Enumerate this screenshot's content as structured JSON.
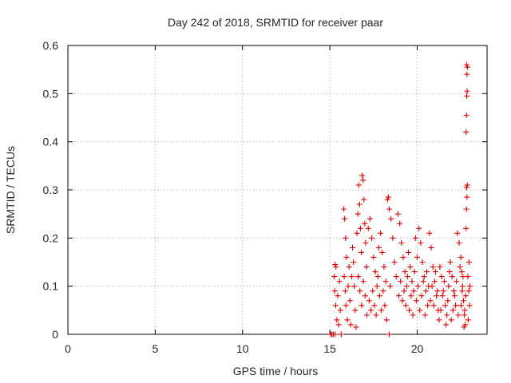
{
  "chart_data": {
    "type": "scatter",
    "title": "Day 242 of 2018, SRMTID for receiver paar",
    "xlabel": "GPS time / hours",
    "ylabel": "SRMTID / TECUs",
    "xlim": [
      0,
      24
    ],
    "ylim": [
      0,
      0.6
    ],
    "xticks": [
      "0",
      "5",
      "10",
      "15",
      "20"
    ],
    "yticks": [
      "0",
      "0.1",
      "0.2",
      "0.3",
      "0.4",
      "0.5",
      "0.6"
    ],
    "grid": true,
    "marker_color": "#e00000",
    "series": [
      {
        "name": "SRMTID",
        "marker": "+",
        "points": [
          [
            15.05,
            0.0
          ],
          [
            15.12,
            0.0
          ],
          [
            15.2,
            0.0
          ],
          [
            15.3,
            0.0
          ],
          [
            15.65,
            0.0
          ],
          [
            18.4,
            0.0
          ],
          [
            15.25,
            0.12
          ],
          [
            15.3,
            0.145
          ],
          [
            15.35,
            0.14
          ],
          [
            15.28,
            0.09
          ],
          [
            15.33,
            0.06
          ],
          [
            15.4,
            0.03
          ],
          [
            15.45,
            0.08
          ],
          [
            15.5,
            0.02
          ],
          [
            15.55,
            0.11
          ],
          [
            15.6,
            0.05
          ],
          [
            15.8,
            0.26
          ],
          [
            15.85,
            0.24
          ],
          [
            15.9,
            0.2
          ],
          [
            15.95,
            0.16
          ],
          [
            15.82,
            0.12
          ],
          [
            15.88,
            0.09
          ],
          [
            15.92,
            0.06
          ],
          [
            16.0,
            0.03
          ],
          [
            16.05,
            0.1
          ],
          [
            16.1,
            0.14
          ],
          [
            16.15,
            0.07
          ],
          [
            16.2,
            0.02
          ],
          [
            16.25,
            0.12
          ],
          [
            16.3,
            0.18
          ],
          [
            16.35,
            0.15
          ],
          [
            16.4,
            0.1
          ],
          [
            16.45,
            0.05
          ],
          [
            16.5,
            0.015
          ],
          [
            16.55,
            0.21
          ],
          [
            16.6,
            0.25
          ],
          [
            16.65,
            0.31
          ],
          [
            16.7,
            0.27
          ],
          [
            16.75,
            0.22
          ],
          [
            16.8,
            0.17
          ],
          [
            16.85,
            0.33
          ],
          [
            16.9,
            0.32
          ],
          [
            16.95,
            0.28
          ],
          [
            17.0,
            0.23
          ],
          [
            17.05,
            0.19
          ],
          [
            17.1,
            0.14
          ],
          [
            16.62,
            0.12
          ],
          [
            16.72,
            0.09
          ],
          [
            16.82,
            0.06
          ],
          [
            16.92,
            0.11
          ],
          [
            17.02,
            0.08
          ],
          [
            17.12,
            0.04
          ],
          [
            17.2,
            0.22
          ],
          [
            17.3,
            0.24
          ],
          [
            17.4,
            0.2
          ],
          [
            17.5,
            0.16
          ],
          [
            17.6,
            0.13
          ],
          [
            17.7,
            0.1
          ],
          [
            17.25,
            0.07
          ],
          [
            17.35,
            0.05
          ],
          [
            17.45,
            0.09
          ],
          [
            17.55,
            0.06
          ],
          [
            17.65,
            0.04
          ],
          [
            17.75,
            0.12
          ],
          [
            17.8,
            0.18
          ],
          [
            17.9,
            0.21
          ],
          [
            18.0,
            0.17
          ],
          [
            18.1,
            0.14
          ],
          [
            18.2,
            0.11
          ],
          [
            18.3,
            0.28
          ],
          [
            18.35,
            0.285
          ],
          [
            18.4,
            0.26
          ],
          [
            18.5,
            0.24
          ],
          [
            18.6,
            0.2
          ],
          [
            18.7,
            0.15
          ],
          [
            18.8,
            0.12
          ],
          [
            17.85,
            0.08
          ],
          [
            17.95,
            0.05
          ],
          [
            18.05,
            0.09
          ],
          [
            18.15,
            0.06
          ],
          [
            18.25,
            0.03
          ],
          [
            18.45,
            0.1
          ],
          [
            18.9,
            0.25
          ],
          [
            19.0,
            0.23
          ],
          [
            19.1,
            0.19
          ],
          [
            19.2,
            0.16
          ],
          [
            19.3,
            0.13
          ],
          [
            19.4,
            0.1
          ],
          [
            18.95,
            0.08
          ],
          [
            19.05,
            0.11
          ],
          [
            19.15,
            0.07
          ],
          [
            19.25,
            0.09
          ],
          [
            19.35,
            0.06
          ],
          [
            19.45,
            0.12
          ],
          [
            19.5,
            0.17
          ],
          [
            19.6,
            0.14
          ],
          [
            19.7,
            0.11
          ],
          [
            19.8,
            0.09
          ],
          [
            19.9,
            0.2
          ],
          [
            20.0,
            0.16
          ],
          [
            19.55,
            0.05
          ],
          [
            19.65,
            0.08
          ],
          [
            19.75,
            0.04
          ],
          [
            19.85,
            0.13
          ],
          [
            19.95,
            0.07
          ],
          [
            20.05,
            0.1
          ],
          [
            20.1,
            0.22
          ],
          [
            20.2,
            0.19
          ],
          [
            20.3,
            0.15
          ],
          [
            20.4,
            0.12
          ],
          [
            20.5,
            0.09
          ],
          [
            20.6,
            0.06
          ],
          [
            20.15,
            0.05
          ],
          [
            20.25,
            0.08
          ],
          [
            20.35,
            0.11
          ],
          [
            20.45,
            0.04
          ],
          [
            20.55,
            0.13
          ],
          [
            20.65,
            0.1
          ],
          [
            20.7,
            0.21
          ],
          [
            20.8,
            0.18
          ],
          [
            20.9,
            0.14
          ],
          [
            21.0,
            0.11
          ],
          [
            21.1,
            0.08
          ],
          [
            21.2,
            0.05
          ],
          [
            20.75,
            0.07
          ],
          [
            20.85,
            0.1
          ],
          [
            20.95,
            0.06
          ],
          [
            21.05,
            0.13
          ],
          [
            21.15,
            0.09
          ],
          [
            21.25,
            0.03
          ],
          [
            21.3,
            0.14
          ],
          [
            21.4,
            0.12
          ],
          [
            21.5,
            0.09
          ],
          [
            21.6,
            0.06
          ],
          [
            21.7,
            0.04
          ],
          [
            21.8,
            0.1
          ],
          [
            21.35,
            0.05
          ],
          [
            21.45,
            0.08
          ],
          [
            21.55,
            0.11
          ],
          [
            21.65,
            0.02
          ],
          [
            21.75,
            0.07
          ],
          [
            21.85,
            0.13
          ],
          [
            21.9,
            0.15
          ],
          [
            22.0,
            0.12
          ],
          [
            22.1,
            0.09
          ],
          [
            22.2,
            0.06
          ],
          [
            22.3,
            0.21
          ],
          [
            22.4,
            0.19
          ],
          [
            21.95,
            0.03
          ],
          [
            22.05,
            0.05
          ],
          [
            22.15,
            0.08
          ],
          [
            22.25,
            0.11
          ],
          [
            22.35,
            0.04
          ],
          [
            22.45,
            0.14
          ],
          [
            22.5,
            0.16
          ],
          [
            22.55,
            0.13
          ],
          [
            22.6,
            0.1
          ],
          [
            22.65,
            0.07
          ],
          [
            22.7,
            0.04
          ],
          [
            22.75,
            0.02
          ],
          [
            22.52,
            0.06
          ],
          [
            22.58,
            0.09
          ],
          [
            22.62,
            0.12
          ],
          [
            22.68,
            0.015
          ],
          [
            22.72,
            0.05
          ],
          [
            22.78,
            0.08
          ],
          [
            22.8,
            0.22
          ],
          [
            22.82,
            0.26
          ],
          [
            22.85,
            0.285
          ],
          [
            22.83,
            0.305
          ],
          [
            22.87,
            0.31
          ],
          [
            22.8,
            0.42
          ],
          [
            22.82,
            0.455
          ],
          [
            22.84,
            0.495
          ],
          [
            22.86,
            0.505
          ],
          [
            22.85,
            0.54
          ],
          [
            22.88,
            0.555
          ],
          [
            22.83,
            0.56
          ],
          [
            22.9,
            0.12
          ],
          [
            22.95,
            0.09
          ],
          [
            23.0,
            0.06
          ],
          [
            22.92,
            0.03
          ],
          [
            22.97,
            0.15
          ],
          [
            23.02,
            0.1
          ]
        ]
      }
    ]
  }
}
